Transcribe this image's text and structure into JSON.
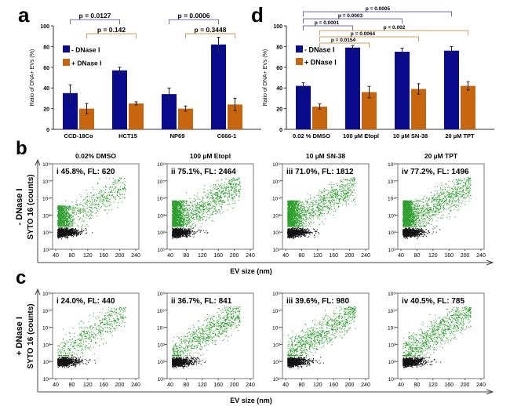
{
  "colors": {
    "minus": "#0a0a8c",
    "plus": "#c8650f",
    "green": "#2e9e2e",
    "black": "#111111",
    "bracket_blue": "#6f6fbf",
    "bracket_orange": "#c9a15a"
  },
  "chart_data": [
    {
      "panel": "a",
      "type": "bar",
      "ylabel": "Ratio of DNA+ EVs (%)",
      "ylim": [
        0,
        100
      ],
      "yticks": [
        0,
        20,
        40,
        60,
        80,
        100
      ],
      "categories": [
        "CCD-18Co",
        "HCT15",
        "NP69",
        "C666-1"
      ],
      "series": [
        {
          "name": "- DNase I",
          "values": [
            35,
            57,
            34,
            82
          ],
          "errors": [
            8,
            3,
            6,
            7
          ]
        },
        {
          "name": "+ DNase I",
          "values": [
            20,
            25,
            20,
            24
          ],
          "errors": [
            5,
            1.5,
            2.5,
            6
          ]
        }
      ],
      "brackets": [
        {
          "label": "p = 0.0127",
          "from": [
            0,
            0
          ],
          "to": [
            1,
            0
          ]
        },
        {
          "label": "p = 0.142",
          "from": [
            0,
            1
          ],
          "to": [
            1,
            1
          ]
        },
        {
          "label": "p = 0.0006",
          "from": [
            2,
            0
          ],
          "to": [
            3,
            0
          ]
        },
        {
          "label": "p = 0.3448",
          "from": [
            2,
            1
          ],
          "to": [
            3,
            1
          ]
        }
      ],
      "legend": "upper-left"
    },
    {
      "panel": "d",
      "type": "bar",
      "ylabel": "Ratio of DNA+ EVs (%)",
      "ylim": [
        0,
        100
      ],
      "yticks": [
        0,
        20,
        40,
        60,
        80,
        100
      ],
      "categories": [
        "0.02 % DMSO",
        "100 µM Etopl",
        "10 µM SN-38",
        "20 µM TPT"
      ],
      "series": [
        {
          "name": "- DNase I",
          "values": [
            42,
            79,
            75,
            76
          ],
          "errors": [
            3,
            2,
            3.5,
            4
          ]
        },
        {
          "name": "+ DNase I",
          "values": [
            22,
            36,
            39,
            42
          ],
          "errors": [
            2.5,
            5.5,
            5,
            4
          ]
        }
      ],
      "brackets": [
        {
          "label": "p = 0.0005",
          "from": [
            0,
            0
          ],
          "to": [
            3,
            0
          ]
        },
        {
          "label": "p = 0.0003",
          "from": [
            0,
            0
          ],
          "to": [
            2,
            0
          ]
        },
        {
          "label": "p = 0.0001",
          "from": [
            0,
            0
          ],
          "to": [
            1,
            0
          ]
        },
        {
          "label": "p = 0.002",
          "from": [
            0,
            1
          ],
          "to": [
            3,
            1
          ]
        },
        {
          "label": "p = 0.0064",
          "from": [
            0,
            1
          ],
          "to": [
            2,
            1
          ]
        },
        {
          "label": "p = 0.0154",
          "from": [
            0,
            1
          ],
          "to": [
            1,
            1
          ]
        }
      ],
      "legend": "upper-left"
    },
    {
      "panel": "b",
      "type": "scatter",
      "row_label": "- DNase I",
      "ylabel": "SYTO 16 (counts)",
      "xlabel": "EV size (nm)",
      "yscale": "log",
      "ylim": [
        10,
        1000000
      ],
      "yticks": [
        "10^1",
        "10^2",
        "10^3",
        "10^4",
        "10^5",
        "10^6"
      ],
      "xticks": [
        40,
        80,
        120,
        160,
        200,
        240
      ],
      "titles": [
        "0.02% DMSO",
        "100 µM Etopl",
        "10 µM SN-38",
        "20 µM TPT"
      ],
      "annotations": [
        "i  45.8%, FL: 620",
        "ii  75.1%, FL: 2464",
        "iii  71.0%, FL: 1812",
        "iv  77.2%, FL: 1496"
      ],
      "positive_percent": [
        45.8,
        75.1,
        71.0,
        77.2
      ]
    },
    {
      "panel": "c",
      "type": "scatter",
      "row_label": "+ DNase I",
      "ylabel": "SYTO 16 (counts)",
      "xlabel": "EV size (nm)",
      "yscale": "log",
      "ylim": [
        10,
        1000000
      ],
      "yticks": [
        "10^1",
        "10^2",
        "10^3",
        "10^4",
        "10^5",
        "10^6"
      ],
      "xticks": [
        40,
        80,
        120,
        160,
        200,
        240
      ],
      "annotations": [
        "i  24.0%, FL: 440",
        "ii  36.7%, FL: 841",
        "iii  39.6%, FL: 980",
        "iv  40.5%, FL: 785"
      ],
      "positive_percent": [
        24.0,
        36.7,
        39.6,
        40.5
      ]
    }
  ]
}
